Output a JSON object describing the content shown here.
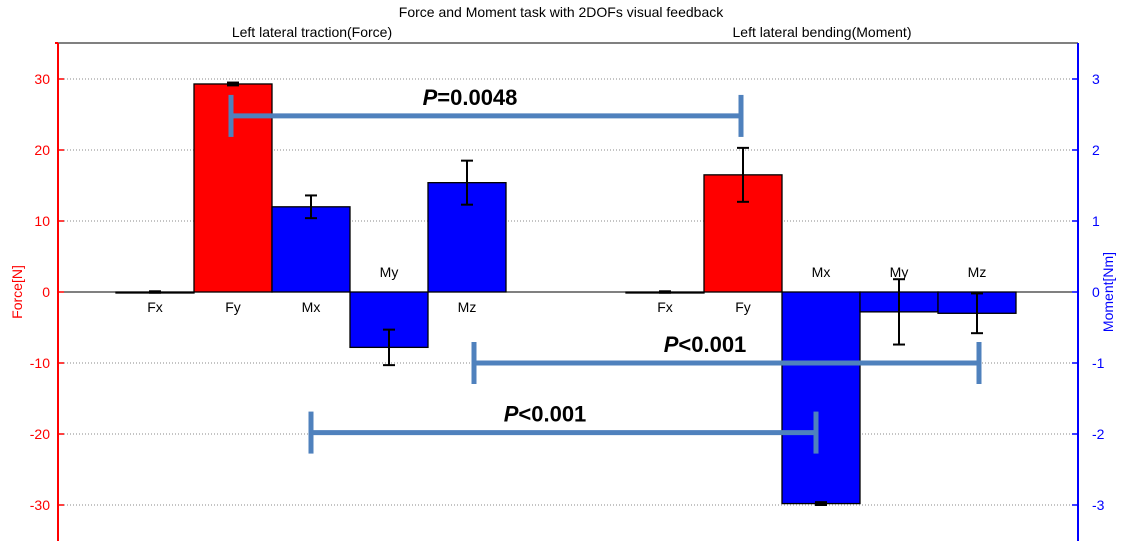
{
  "chart_data": {
    "type": "bar",
    "title": "Force and Moment task with 2DOFs visual feedback",
    "y_left": {
      "label": "Force[N]",
      "range": [
        -35,
        35
      ],
      "ticks": [
        -30,
        -20,
        -10,
        0,
        10,
        20,
        30
      ],
      "color": "#ff0000"
    },
    "y_right": {
      "label": "Moment[Nm]",
      "range": [
        -3.5,
        3.5
      ],
      "ticks": [
        -3,
        -2,
        -1,
        0,
        1,
        2,
        3
      ],
      "color": "#0000ff"
    },
    "grid": "dotted horizontal",
    "groups": [
      {
        "subtitle": "Left lateral traction(Force)",
        "bars": [
          {
            "label": "Fx",
            "axis": "force",
            "value": 0.0,
            "error": 0.1,
            "color": "#ff0000",
            "label_side": "below"
          },
          {
            "label": "Fy",
            "axis": "force",
            "value": 29.3,
            "error": 0.2,
            "color": "#ff0000",
            "label_side": "below"
          },
          {
            "label": "Mx",
            "axis": "moment",
            "value": 1.2,
            "error": 0.16,
            "color": "#0000ff",
            "label_side": "below"
          },
          {
            "label": "My",
            "axis": "moment",
            "value": -0.78,
            "error": 0.25,
            "color": "#0000ff",
            "label_side": "above"
          },
          {
            "label": "Mz",
            "axis": "moment",
            "value": 1.54,
            "error": 0.31,
            "color": "#0000ff",
            "label_side": "below"
          }
        ]
      },
      {
        "subtitle": "Left lateral bending(Moment)",
        "bars": [
          {
            "label": "Fx",
            "axis": "force",
            "value": 0.0,
            "error": 0.1,
            "color": "#ff0000",
            "label_side": "below"
          },
          {
            "label": "Fy",
            "axis": "force",
            "value": 16.5,
            "error": 3.8,
            "color": "#ff0000",
            "label_side": "below"
          },
          {
            "label": "Mx",
            "axis": "moment",
            "value": -2.98,
            "error": 0.02,
            "color": "#0000ff",
            "label_side": "above"
          },
          {
            "label": "My",
            "axis": "moment",
            "value": -0.28,
            "error": 0.46,
            "color": "#0000ff",
            "label_side": "above"
          },
          {
            "label": "Mz",
            "axis": "moment",
            "value": -0.3,
            "error": 0.28,
            "color": "#0000ff",
            "label_side": "above"
          }
        ]
      }
    ],
    "significance": [
      {
        "text_italic": "P",
        "text_rest": "=0.0048",
        "between": [
          "Left lateral traction Fy",
          "Left lateral bending Fy"
        ],
        "y_moment": 2.48
      },
      {
        "text_italic": "P",
        "text_rest": "<0.001",
        "between": [
          "Left lateral traction My",
          "Left lateral bending Mz"
        ],
        "y_moment": -1.0
      },
      {
        "text_italic": "P",
        "text_rest": "<0.001",
        "between": [
          "Left lateral traction Mx",
          "Left lateral bending Mx"
        ],
        "y_moment": -1.98
      }
    ],
    "colors": {
      "force": "#ff0000",
      "moment": "#0000ff",
      "sig_bracket": "#4f81bd"
    }
  }
}
